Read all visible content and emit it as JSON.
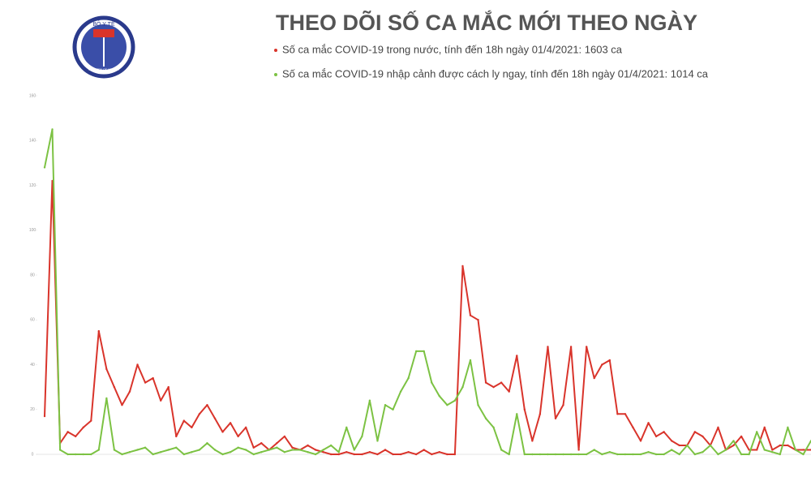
{
  "logo": {
    "name": "BỘ Y TẾ",
    "subtitle": "MINISTRY OF HEALTH"
  },
  "chart_data": {
    "type": "line",
    "title": "THEO DÕI SỐ CA MẮC MỚI THEO NGÀY",
    "categories": [
      null,
      null,
      null,
      null,
      null,
      null,
      null,
      null,
      null,
      null,
      null,
      null,
      null,
      null,
      null,
      null,
      null,
      null,
      null,
      null,
      null,
      null,
      null,
      null,
      null,
      null,
      null,
      null,
      null,
      null,
      null,
      null,
      null,
      null,
      null,
      null,
      null,
      null,
      null,
      null,
      null,
      null,
      null,
      null,
      null,
      null,
      null,
      null,
      null,
      null,
      null,
      null,
      null,
      null,
      null,
      null,
      null,
      null,
      null,
      null,
      null,
      null,
      null,
      null,
      null,
      null,
      null,
      null,
      null,
      null,
      null,
      null,
      null,
      null,
      null,
      null,
      null,
      null,
      null,
      null,
      null,
      null,
      null,
      null,
      null,
      null,
      null,
      null,
      null,
      null,
      null,
      null,
      null,
      null,
      null,
      null,
      null,
      null,
      null,
      null
    ],
    "series": [
      {
        "name": "Số ca mắc COVID-19 trong nước, tính đến 18h ngày 01/4/2021: 1603 ca",
        "color": "#d9342b",
        "values": [
          17,
          122,
          5,
          10,
          8,
          12,
          15,
          55,
          38,
          30,
          22,
          28,
          40,
          32,
          34,
          24,
          30,
          8,
          15,
          12,
          18,
          22,
          16,
          10,
          14,
          8,
          12,
          3,
          5,
          2,
          5,
          8,
          3,
          2,
          4,
          2,
          1,
          0,
          0,
          1,
          0,
          0,
          1,
          0,
          2,
          0,
          0,
          1,
          0,
          2,
          0,
          1,
          0,
          0,
          84,
          62,
          60,
          32,
          30,
          32,
          28,
          44,
          20,
          6,
          18,
          48,
          16,
          22,
          48,
          2,
          48,
          34,
          40,
          42,
          18,
          18,
          12,
          6,
          14,
          8,
          10,
          6,
          4,
          4,
          10,
          8,
          4,
          12,
          2,
          4,
          8,
          2,
          2,
          12,
          2,
          4,
          4,
          2,
          2,
          2
        ]
      },
      {
        "name": "Số ca mắc COVID-19 nhập cảnh được cách ly ngay, tính đến 18h ngày 01/4/2021: 1014 ca",
        "color": "#7cc243",
        "values": [
          128,
          145,
          2,
          0,
          0,
          0,
          0,
          2,
          25,
          2,
          0,
          1,
          2,
          3,
          0,
          1,
          2,
          3,
          0,
          1,
          2,
          5,
          2,
          0,
          1,
          3,
          2,
          0,
          1,
          2,
          3,
          1,
          2,
          2,
          1,
          0,
          2,
          4,
          1,
          12,
          2,
          8,
          24,
          6,
          22,
          20,
          28,
          34,
          46,
          46,
          32,
          26,
          22,
          24,
          30,
          42,
          22,
          16,
          12,
          2,
          0,
          18,
          0,
          0,
          0,
          0,
          0,
          0,
          0,
          0,
          0,
          2,
          0,
          1,
          0,
          0,
          0,
          0,
          1,
          0,
          0,
          2,
          0,
          4,
          0,
          1,
          4,
          0,
          2,
          6,
          0,
          0,
          10,
          2,
          1,
          0,
          12,
          2,
          0,
          6
        ]
      }
    ],
    "ylim": [
      0,
      160
    ],
    "yticks": [
      0,
      20,
      40,
      60,
      80,
      100,
      120,
      140,
      160
    ]
  }
}
